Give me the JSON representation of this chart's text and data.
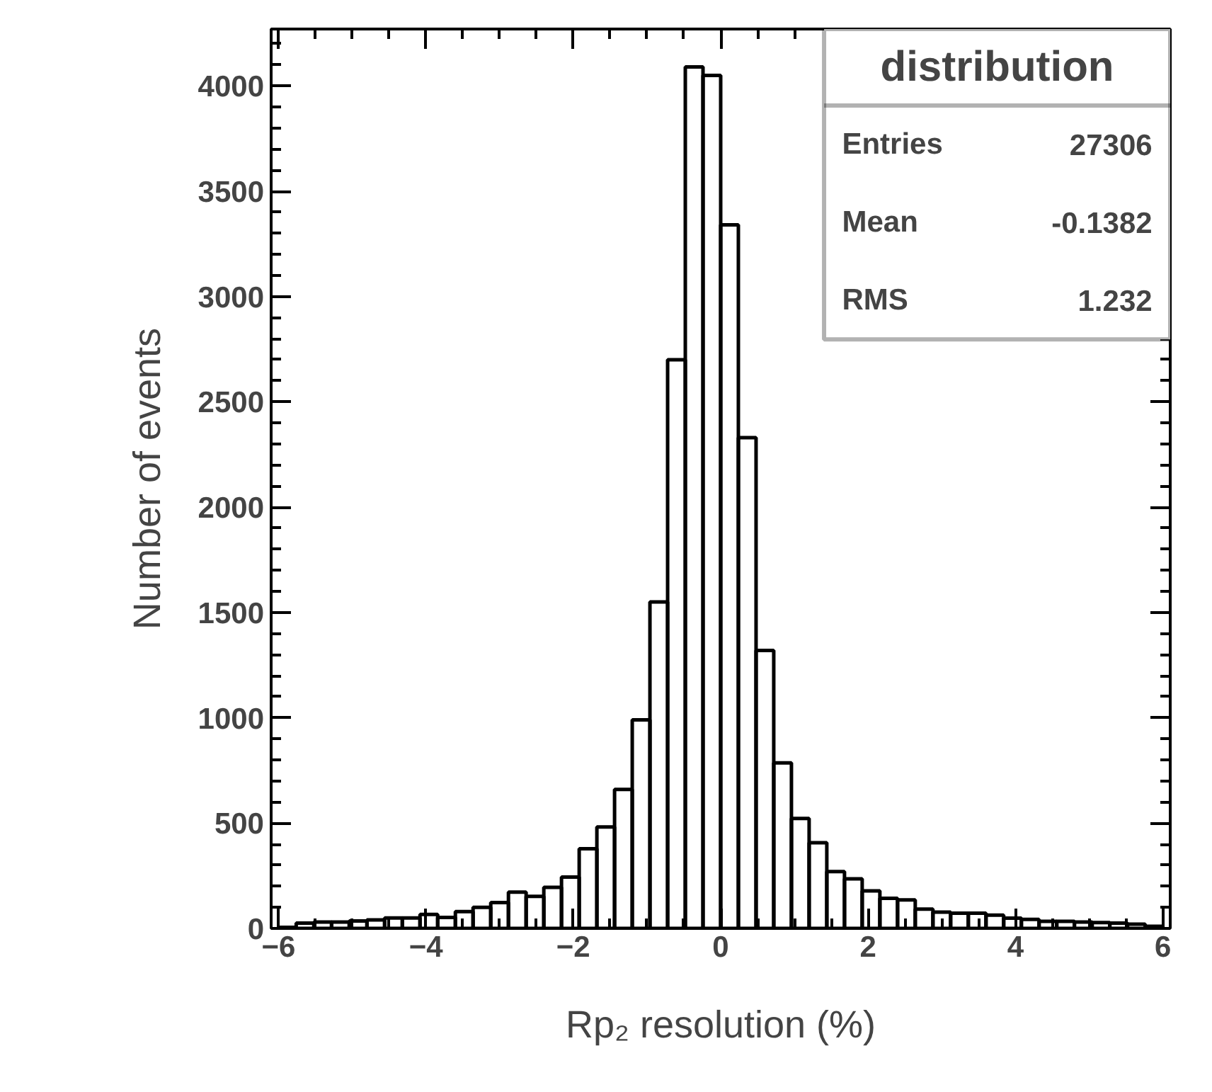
{
  "chart_data": {
    "type": "histogram",
    "title": "distribution",
    "xlabel": "Rp₂ resolution (%)",
    "ylabel": "Number of events",
    "bins": [
      -6,
      -5.76,
      -5.52,
      -5.28,
      -5.04,
      -4.8,
      -4.56,
      -4.32,
      -4.08,
      -3.84,
      -3.6,
      -3.36,
      -3.12,
      -2.88,
      -2.64,
      -2.4,
      -2.16,
      -1.92,
      -1.68,
      -1.44,
      -1.2,
      -0.96,
      -0.72,
      -0.48,
      -0.24,
      0,
      0.24,
      0.48,
      0.72,
      0.96,
      1.2,
      1.44,
      1.68,
      1.92,
      2.16,
      2.4,
      2.64,
      2.88,
      3.12,
      3.36,
      3.6,
      3.84,
      4.08,
      4.32,
      4.56,
      4.8,
      5.04,
      5.28,
      5.52,
      5.76,
      6
    ],
    "values": [
      5,
      25,
      30,
      30,
      35,
      40,
      50,
      50,
      66,
      52,
      80,
      100,
      123,
      172,
      152,
      195,
      244,
      378,
      482,
      660,
      990,
      1550,
      2700,
      4090,
      4050,
      3340,
      2330,
      1320,
      786,
      522,
      407,
      270,
      235,
      178,
      143,
      135,
      92,
      77,
      72,
      72,
      63,
      49,
      43,
      34,
      34,
      30,
      28,
      25,
      20,
      10
    ],
    "color": "#000000",
    "xlim": [
      -6.1,
      6.1
    ],
    "ylim": [
      0,
      4270
    ],
    "xticks": [
      -6,
      -4,
      -2,
      0,
      2,
      4,
      6
    ],
    "yticks": [
      0,
      500,
      1000,
      1500,
      2000,
      2500,
      3000,
      3500,
      4000
    ],
    "annotations": [
      "Entries",
      "27306",
      "Mean",
      "-0.1382",
      "RMS",
      "1.232"
    ],
    "grid": false
  }
}
